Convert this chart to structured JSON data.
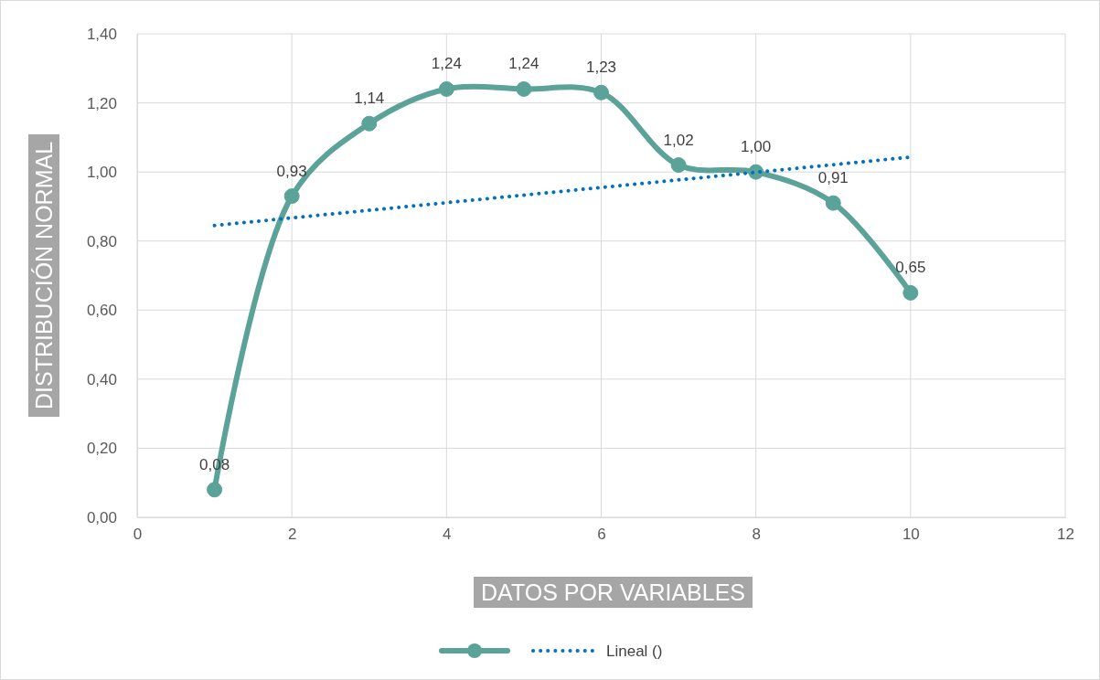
{
  "chart_data": {
    "type": "line",
    "xlabel": "DATOS POR VARIABLES",
    "ylabel": "DISTRIBUCIÓN NORMAL",
    "xlim": [
      0,
      12
    ],
    "xticks": [
      0,
      2,
      4,
      6,
      8,
      10,
      12
    ],
    "ylim": [
      0,
      1.4
    ],
    "yticks": [
      {
        "value": 0,
        "label": "0,00"
      },
      {
        "value": 0.2,
        "label": "0,20"
      },
      {
        "value": 0.4,
        "label": "0,40"
      },
      {
        "value": 0.6,
        "label": "0,60"
      },
      {
        "value": 0.8,
        "label": "0,80"
      },
      {
        "value": 1,
        "label": "1,00"
      },
      {
        "value": 1.2,
        "label": "1,20"
      },
      {
        "value": 1.4,
        "label": "1,40"
      }
    ],
    "grid": true,
    "legend": "bottom",
    "series": [
      {
        "color": "#5ba399",
        "marker": "circle",
        "line_style": "solid",
        "x": [
          1,
          2,
          3,
          4,
          5,
          6,
          7,
          8,
          9,
          10
        ],
        "values": [
          0.08,
          0.93,
          1.14,
          1.24,
          1.24,
          1.23,
          1.02,
          1.0,
          0.91,
          0.65
        ],
        "value_labels": [
          "0,08",
          "0,93",
          "1,14",
          "1,24",
          "1,24",
          "1,23",
          "1,02",
          "1,00",
          "0,91",
          "0,65"
        ]
      },
      {
        "name": "Lineal ()",
        "color": "#0070c0",
        "marker": "none",
        "line_style": "dotted",
        "x": [
          1,
          10
        ],
        "values": [
          0.845,
          1.043
        ]
      }
    ]
  }
}
